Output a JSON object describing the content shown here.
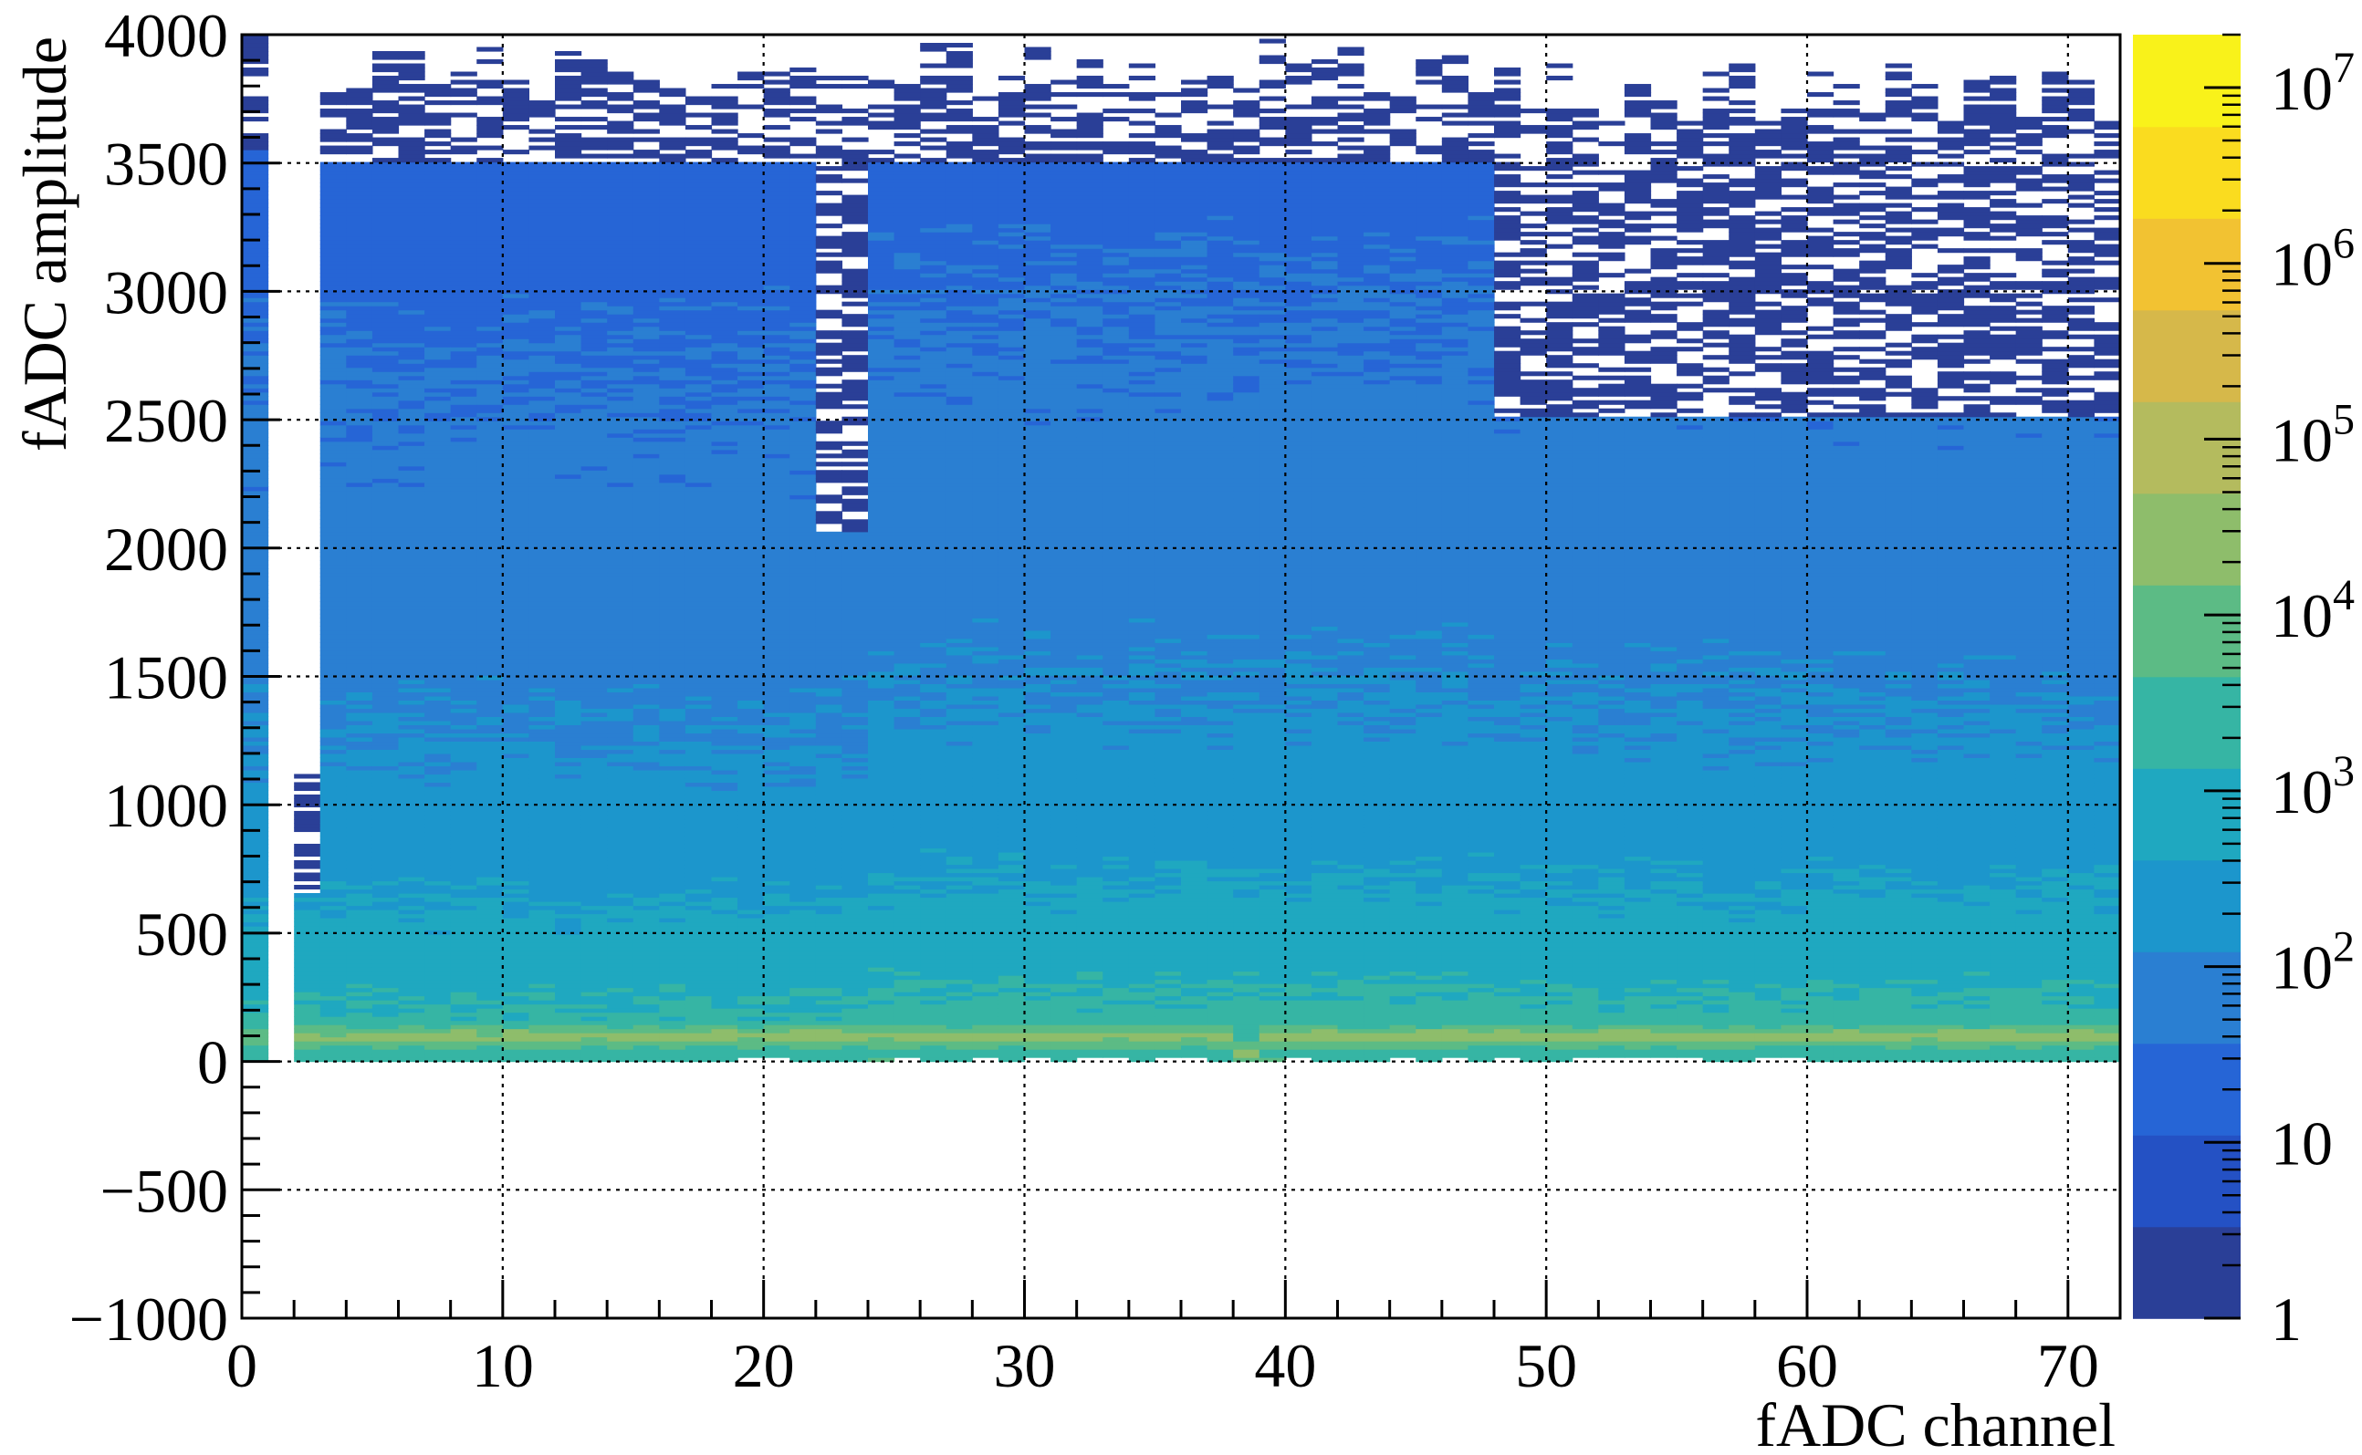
{
  "chart_data": {
    "type": "heatmap",
    "title": "",
    "xlabel": "fADC channel",
    "ylabel": "fADC amplitude",
    "xlim": [
      0,
      72
    ],
    "ylim": [
      -1000,
      4000
    ],
    "x_ticks": [
      0,
      10,
      20,
      30,
      40,
      50,
      60,
      70
    ],
    "x_tick_labels": [
      "0",
      "10",
      "20",
      "30",
      "40",
      "50",
      "60",
      "70"
    ],
    "y_ticks": [
      -1000,
      -500,
      0,
      500,
      1000,
      1500,
      2000,
      2500,
      3000,
      3500,
      4000
    ],
    "y_tick_labels": [
      "−1000",
      "−500",
      "0",
      "500",
      "1000",
      "1500",
      "2000",
      "2500",
      "3000",
      "3500",
      "4000"
    ],
    "grid": true,
    "z_scale": "log",
    "z_range": [
      1,
      20000000
    ],
    "colorbar_ticks": [
      {
        "value": 1,
        "base": "1",
        "exp": ""
      },
      {
        "value": 10,
        "base": "10",
        "exp": ""
      },
      {
        "value": 100,
        "base": "10",
        "exp": "2"
      },
      {
        "value": 1000,
        "base": "10",
        "exp": "3"
      },
      {
        "value": 10000,
        "base": "10",
        "exp": "4"
      },
      {
        "value": 100000,
        "base": "10",
        "exp": "5"
      },
      {
        "value": 1000000,
        "base": "10",
        "exp": "6"
      },
      {
        "value": 10000000,
        "base": "10",
        "exp": "7"
      }
    ],
    "colormap": [
      "#2a3f97",
      "#2451c4",
      "#2665d6",
      "#2a7fd2",
      "#1c96cc",
      "#1fa8c0",
      "#36b5a4",
      "#5cbb85",
      "#8ebd6b",
      "#b4bb5e",
      "#d6b84a",
      "#f2c232",
      "#fadc1f",
      "#f9f21a"
    ],
    "bin_width_channel": 1,
    "bin_height_amplitude": 16,
    "channel_profiles": [
      {
        "channels": [
          0,
          1
        ],
        "max_amplitude": 4000,
        "noise_floor_amplitude": 3500
      },
      {
        "channels": [
          1,
          2
        ],
        "max_amplitude": 0
      },
      {
        "channels": [
          2,
          3
        ],
        "max_amplitude": 1150,
        "sparse_above_amplitude": 650
      },
      {
        "channels": [
          3,
          23.5
        ],
        "max_amplitude": 3900,
        "noise_floor_amplitude": 3500
      },
      {
        "channels": [
          22,
          23.5
        ],
        "max_amplitude": 3900,
        "noise_floor_amplitude": 2050,
        "note": "sparse gaps 2050-3500"
      },
      {
        "channels": [
          23.5,
          47.5
        ],
        "max_amplitude": 4000,
        "noise_floor_amplitude": 3500
      },
      {
        "channels": [
          37.5,
          39.5
        ],
        "max_amplitude": 3900,
        "pedestal_amplitude": 15
      },
      {
        "channels": [
          47.5,
          72
        ],
        "max_amplitude": 3900,
        "noise_floor_amplitude": 2500,
        "note": "sparse region 2500-3600"
      }
    ],
    "pedestal_amplitude": 90,
    "pedestal_counts": 20000,
    "notable_bins": [
      {
        "channel_range": [
          0,
          2
        ],
        "amplitude": 90,
        "counts": 8000
      },
      {
        "channel_range": [
          23.5,
          72
        ],
        "amplitude": 90,
        "counts": 20000
      }
    ]
  }
}
